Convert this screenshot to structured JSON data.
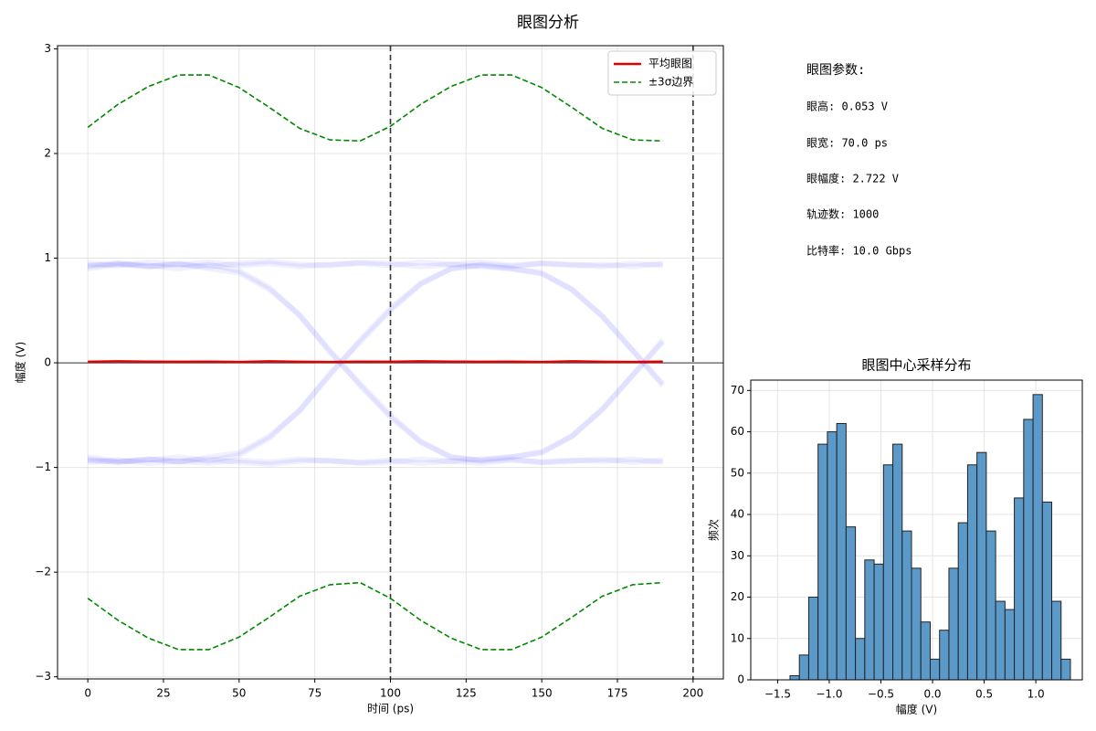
{
  "title": "眼图分析",
  "parameters": {
    "heading": "眼图参数:",
    "items": [
      "眼高: 0.053 V",
      "眼宽: 70.0 ps",
      "眼幅度: 2.722 V",
      "轨迹数: 1000",
      "比特率: 10.0 Gbps"
    ]
  },
  "chart_data": [
    {
      "type": "line",
      "xlabel": "时间 (ps)",
      "ylabel": "幅度 (V)",
      "x": [
        0,
        10,
        20,
        30,
        40,
        50,
        60,
        70,
        80,
        90,
        100,
        110,
        120,
        130,
        140,
        150,
        160,
        170,
        180,
        190
      ],
      "series": [
        {
          "name": "平均眼图",
          "color": "#e00000",
          "dash": false,
          "values": [
            0.01,
            0.015,
            0.012,
            0.01,
            0.012,
            0.008,
            0.015,
            0.01,
            0.008,
            0.012,
            0.01,
            0.015,
            0.012,
            0.01,
            0.012,
            0.008,
            0.015,
            0.01,
            0.008,
            0.012
          ]
        },
        {
          "name": "±3σ边界",
          "color": "#008800",
          "dash": true,
          "values": [
            2.25,
            2.47,
            2.64,
            2.75,
            2.75,
            2.63,
            2.44,
            2.24,
            2.13,
            2.12,
            2.26,
            2.47,
            2.64,
            2.75,
            2.75,
            2.63,
            2.44,
            2.24,
            2.13,
            2.12
          ]
        },
        {
          "color": "#008800",
          "dash": true,
          "values": [
            -2.25,
            -2.46,
            -2.63,
            -2.74,
            -2.74,
            -2.62,
            -2.43,
            -2.23,
            -2.12,
            -2.1,
            -2.25,
            -2.46,
            -2.63,
            -2.74,
            -2.74,
            -2.62,
            -2.43,
            -2.23,
            -2.12,
            -2.1
          ]
        }
      ],
      "traces": [
        [
          0.95,
          0.93,
          0.96,
          0.94,
          0.92,
          0.95,
          0.97,
          0.94,
          0.93,
          0.96,
          0.95,
          0.92,
          0.94,
          0.96,
          0.93,
          0.95,
          0.94,
          0.92,
          0.95,
          0.93
        ],
        [
          -0.95,
          -0.93,
          -0.96,
          -0.94,
          -0.92,
          -0.95,
          -0.97,
          -0.94,
          -0.93,
          -0.96,
          -0.95,
          -0.92,
          -0.94,
          -0.96,
          -0.93,
          -0.95,
          -0.94,
          -0.92,
          -0.95,
          -0.93
        ],
        [
          -0.92,
          -0.95,
          -0.93,
          -0.9,
          -0.94,
          -0.88,
          -0.72,
          -0.45,
          -0.12,
          0.22,
          0.52,
          0.76,
          0.9,
          0.94,
          0.92,
          0.95,
          0.93,
          0.94,
          0.92,
          0.95
        ],
        [
          0.92,
          0.95,
          0.93,
          0.9,
          0.94,
          0.88,
          0.72,
          0.45,
          0.12,
          -0.22,
          -0.52,
          -0.76,
          -0.9,
          -0.94,
          -0.92,
          -0.95,
          -0.93,
          -0.94,
          -0.92,
          -0.95
        ],
        [
          0.93,
          0.95,
          0.92,
          0.94,
          0.96,
          0.93,
          0.95,
          0.92,
          0.94,
          0.95,
          0.93,
          0.96,
          0.94,
          0.92,
          0.9,
          0.86,
          0.7,
          0.44,
          0.12,
          -0.2
        ],
        [
          -0.93,
          -0.95,
          -0.92,
          -0.94,
          -0.96,
          -0.93,
          -0.95,
          -0.92,
          -0.94,
          -0.95,
          -0.93,
          -0.96,
          -0.94,
          -0.92,
          -0.9,
          -0.86,
          -0.7,
          -0.44,
          -0.12,
          0.2
        ],
        [
          -0.9,
          -0.94,
          -0.92,
          -0.95,
          -0.9,
          -0.86,
          -0.7,
          -0.46,
          -0.1,
          0.2,
          0.5,
          0.75,
          0.9,
          0.93,
          0.9,
          0.85,
          0.7,
          0.45,
          0.12,
          -0.22
        ],
        [
          0.9,
          0.94,
          0.92,
          0.95,
          0.9,
          0.86,
          0.7,
          0.46,
          0.1,
          -0.2,
          -0.5,
          -0.75,
          -0.9,
          -0.93,
          -0.9,
          -0.85,
          -0.7,
          -0.45,
          -0.12,
          0.22
        ]
      ],
      "trace_color": "rgba(0,0,255,0.06)",
      "vlines": [
        100,
        200
      ],
      "hline": 0,
      "xlim": [
        -10,
        210
      ],
      "xticks": [
        0,
        25,
        50,
        75,
        100,
        125,
        150,
        175,
        200
      ],
      "ylim": [
        -3.02,
        3.03
      ],
      "yticks": [
        {
          "value": -3,
          "label": "−3"
        },
        {
          "value": -2,
          "label": "−2"
        },
        {
          "value": -1,
          "label": "−1"
        },
        0,
        1,
        2,
        3
      ],
      "grid": true,
      "legend": "upper right"
    },
    {
      "type": "histogram",
      "title": "眼图中心采样分布",
      "xlabel": "幅度 (V)",
      "ylabel": "频次",
      "color": "#5b9ac8",
      "bins": [
        -1.38,
        -1.2895,
        -1.199,
        -1.1085,
        -1.018,
        -0.9275,
        -0.837,
        -0.7465,
        -0.656,
        -0.5655,
        -0.475,
        -0.3845,
        -0.294,
        -0.2035,
        -0.113,
        -0.0225,
        0.068,
        0.1585,
        0.249,
        0.3395,
        0.43,
        0.5205,
        0.611,
        0.7015,
        0.792,
        0.8825,
        0.973,
        1.0635,
        1.154,
        1.2445,
        1.335
      ],
      "values": [
        1,
        6,
        20,
        57,
        60,
        62,
        37,
        10,
        29,
        28,
        52,
        57,
        36,
        27,
        14,
        5,
        12,
        27,
        38,
        52,
        55,
        36,
        19,
        17,
        44,
        63,
        69,
        43,
        19,
        5
      ],
      "xlim": [
        -1.76,
        1.45
      ],
      "xticks": [
        {
          "value": -1.5,
          "label": "−1.5"
        },
        {
          "value": -1.0,
          "label": "−1.0"
        },
        {
          "value": -0.5,
          "label": "−0.5"
        },
        {
          "value": 0.0,
          "label": "0.0"
        },
        {
          "value": 0.5,
          "label": "0.5"
        },
        {
          "value": 1.0,
          "label": "1.0"
        }
      ],
      "ylim": [
        0,
        72.5
      ],
      "yticks": [
        0,
        10,
        20,
        30,
        40,
        50,
        60,
        70
      ],
      "grid": true
    }
  ]
}
